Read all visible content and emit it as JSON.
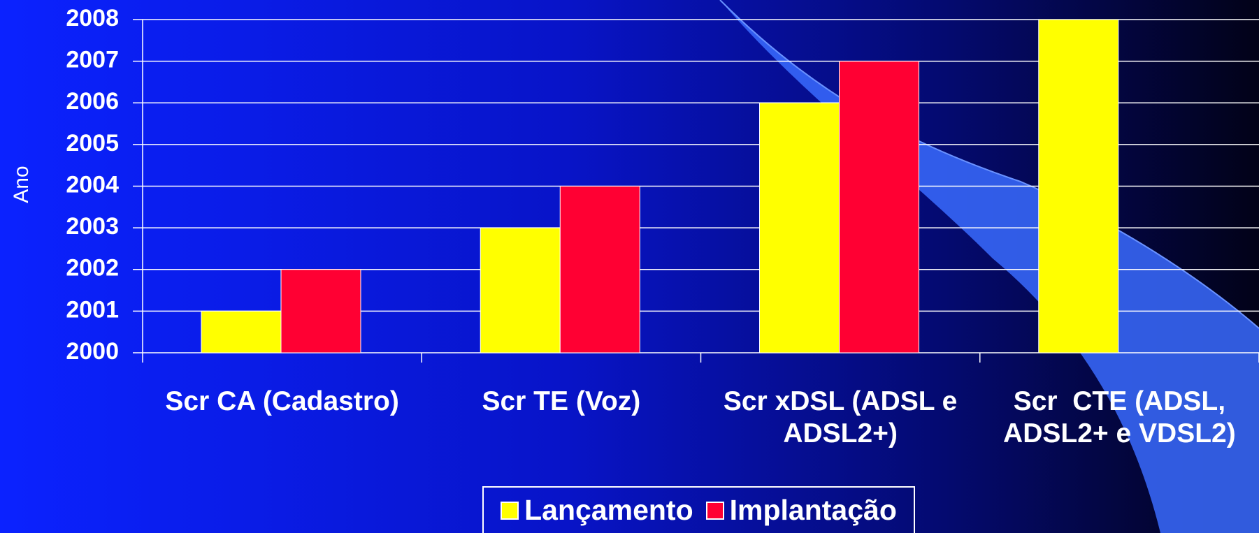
{
  "chart_data": {
    "type": "bar",
    "y_label": "Ano",
    "categories": [
      "Scr CA (Cadastro)",
      "Scr TE (Voz)",
      "Scr xDSL (ADSL e ADSL2+)",
      "Scr  CTE (ADSL, ADSL2+ e VDSL2)"
    ],
    "series": [
      {
        "name": "Lançamento",
        "color": "#ffff00",
        "values": [
          2001,
          2003,
          2006,
          2008
        ]
      },
      {
        "name": "Implantação",
        "color": "#ff0033",
        "values": [
          2002,
          2004,
          2007,
          null
        ]
      }
    ],
    "ylim": [
      2000,
      2008
    ],
    "yticks": [
      2000,
      2001,
      2002,
      2003,
      2004,
      2005,
      2006,
      2007,
      2008
    ],
    "grid": true,
    "legend": "bottom"
  }
}
